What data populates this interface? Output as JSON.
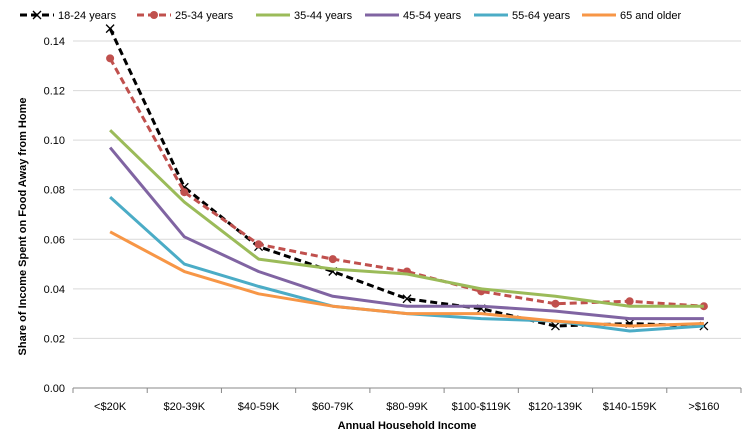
{
  "chart_data": {
    "type": "line",
    "title": "",
    "xlabel": "Annual Household Income",
    "ylabel": "Share of Income Spent on Food Away from Home",
    "categories": [
      "<$20K",
      "$20-39K",
      "$40-59K",
      "$60-79K",
      "$80-99K",
      "$100-$119K",
      "$120-139K",
      "$140-159K",
      ">$160"
    ],
    "ylim": [
      0,
      0.14
    ],
    "yticks": [
      0.0,
      0.02,
      0.04,
      0.06,
      0.08,
      0.1,
      0.12,
      0.14
    ],
    "grid": true,
    "legend_position": "top",
    "series": [
      {
        "name": "18-24 years",
        "color": "#000000",
        "dash": true,
        "marker": "x",
        "values": [
          0.145,
          0.081,
          0.057,
          0.047,
          0.036,
          0.032,
          0.025,
          0.026,
          0.025
        ]
      },
      {
        "name": "25-34 years",
        "color": "#C0504D",
        "dash": true,
        "marker": "circle",
        "values": [
          0.133,
          0.079,
          0.058,
          0.052,
          0.047,
          0.039,
          0.034,
          0.035,
          0.033
        ]
      },
      {
        "name": "35-44 years",
        "color": "#9BBB59",
        "dash": false,
        "marker": "none",
        "values": [
          0.104,
          0.075,
          0.052,
          0.048,
          0.046,
          0.04,
          0.037,
          0.033,
          0.033
        ]
      },
      {
        "name": "45-54 years",
        "color": "#8064A2",
        "dash": false,
        "marker": "none",
        "values": [
          0.097,
          0.061,
          0.047,
          0.037,
          0.033,
          0.033,
          0.031,
          0.028,
          0.028
        ]
      },
      {
        "name": "55-64 years",
        "color": "#4BACC6",
        "dash": false,
        "marker": "none",
        "values": [
          0.077,
          0.05,
          0.041,
          0.033,
          0.03,
          0.028,
          0.027,
          0.023,
          0.025
        ]
      },
      {
        "name": "65 and older",
        "color": "#F79646",
        "dash": false,
        "marker": "none",
        "values": [
          0.063,
          0.047,
          0.038,
          0.033,
          0.03,
          0.03,
          0.027,
          0.025,
          0.026
        ]
      }
    ]
  }
}
